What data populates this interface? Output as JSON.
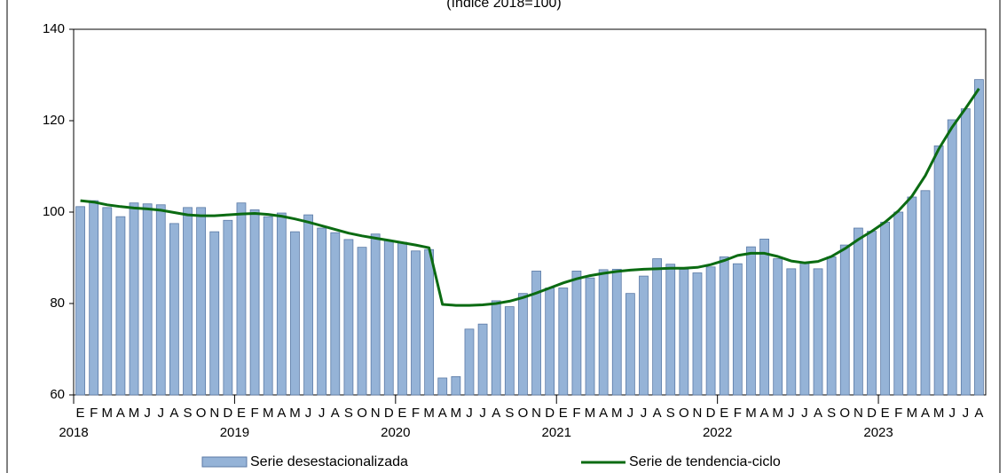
{
  "chart_data": {
    "type": "combo",
    "title": "(índice 2018=100)",
    "categories": [
      "E",
      "F",
      "M",
      "A",
      "M",
      "J",
      "J",
      "A",
      "S",
      "O",
      "N",
      "D",
      "E",
      "F",
      "M",
      "A",
      "M",
      "J",
      "J",
      "A",
      "S",
      "O",
      "N",
      "D",
      "E",
      "F",
      "M",
      "A",
      "M",
      "J",
      "J",
      "A",
      "S",
      "O",
      "N",
      "D",
      "E",
      "F",
      "M",
      "A",
      "M",
      "J",
      "J",
      "A",
      "S",
      "O",
      "N",
      "D",
      "E",
      "F",
      "M",
      "A",
      "M",
      "J",
      "J",
      "A",
      "S",
      "O",
      "N",
      "D",
      "E",
      "F",
      "M",
      "A",
      "M",
      "J",
      "J",
      "A"
    ],
    "years": [
      "2018",
      "2019",
      "2020",
      "2021",
      "2022",
      "2023"
    ],
    "series": [
      {
        "name": "Serie desestacionalizada",
        "type": "bar",
        "color": "#95b3d7",
        "values": [
          101.2,
          102.5,
          101,
          99,
          102,
          101.8,
          101.6,
          97.5,
          101,
          101,
          95.7,
          98.2,
          102,
          100.5,
          99,
          99.8,
          95.7,
          99.4,
          96.5,
          95.5,
          94,
          92.3,
          95.2,
          93.8,
          93.4,
          91.5,
          91.8,
          63.7,
          64,
          74.4,
          75.5,
          80.6,
          79.3,
          82.2,
          87.1,
          83.4,
          83.4,
          87.1,
          85.6,
          87.4,
          87.5,
          82.2,
          86,
          89.8,
          88.6,
          87.5,
          86.7,
          88,
          90.2,
          88.7,
          92.4,
          94.1,
          89.8,
          87.6,
          88.8,
          87.6,
          90.2,
          92.8,
          96.5,
          95.8,
          97.8,
          100,
          103.3,
          104.7,
          114.5,
          120.2,
          122.6,
          129
        ]
      },
      {
        "name": "Serie de tendencia-ciclo",
        "type": "line",
        "color": "#0b6b12",
        "values": [
          102.5,
          102.2,
          101.6,
          101.2,
          100.9,
          100.7,
          100.4,
          99.9,
          99.4,
          99.2,
          99.2,
          99.4,
          99.6,
          99.7,
          99.5,
          99.1,
          98.5,
          97.8,
          97,
          96.2,
          95.4,
          94.8,
          94.3,
          93.8,
          93.3,
          92.8,
          92.2,
          79.8,
          79.6,
          79.6,
          79.7,
          80,
          80.5,
          81.3,
          82.3,
          83.4,
          84.5,
          85.4,
          86.1,
          86.6,
          87,
          87.3,
          87.5,
          87.6,
          87.7,
          87.7,
          87.9,
          88.5,
          89.4,
          90.5,
          91,
          91,
          90.3,
          89.3,
          88.9,
          89.2,
          90.3,
          92,
          94,
          95.8,
          97.8,
          100.3,
          103.5,
          108,
          113.8,
          118.6,
          122.7,
          127
        ]
      }
    ],
    "ylim": [
      60,
      140
    ],
    "yticks": [
      60,
      80,
      100,
      120,
      140
    ],
    "grid": false
  }
}
